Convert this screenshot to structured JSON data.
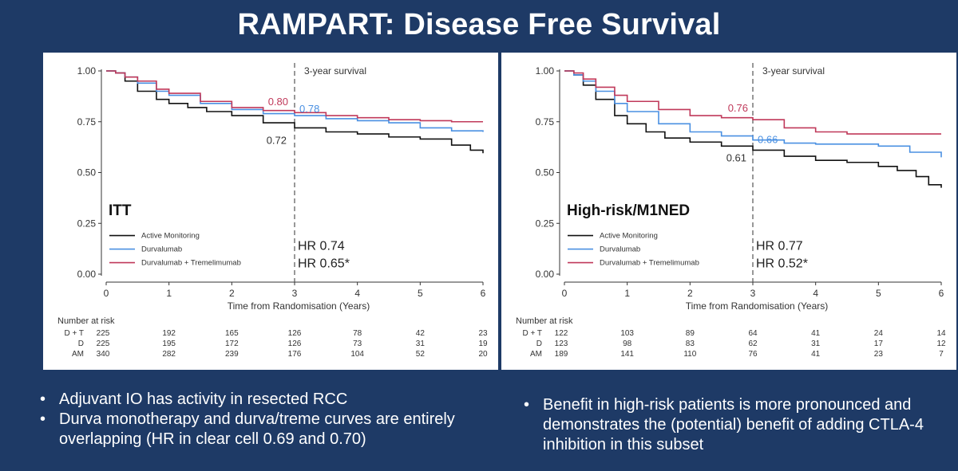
{
  "slide": {
    "title": "RAMPART: Disease Free Survival"
  },
  "bullets_left": [
    "Adjuvant IO has activity in resected RCC",
    "Durva monotherapy and durva/treme curves are entirely overlapping (HR in clear cell 0.69 and 0.70)"
  ],
  "bullets_right": [
    "Benefit in high-risk patients is more pronounced and demonstrates the (potential) benefit of adding CTLA-4 inhibition in this subset"
  ],
  "colors": {
    "active_monitoring": "#111111",
    "durvalumab": "#4a90e2",
    "durva_treme": "#c0395a"
  },
  "chart_data": [
    {
      "type": "line",
      "subtitle": "ITT",
      "xlabel": "Time from Randomisation (Years)",
      "ylabel": "",
      "xlim": [
        0,
        6
      ],
      "ylim": [
        0,
        1
      ],
      "x_ticks": [
        "0",
        "1",
        "2",
        "3",
        "4",
        "5",
        "6"
      ],
      "y_ticks": [
        "0.00",
        "0.25",
        "0.50",
        "0.75",
        "1.00"
      ],
      "grid": false,
      "legend_position": "bottom-left",
      "reference_line": {
        "x": 3,
        "label": "3-year survival"
      },
      "hr_labels": [
        "HR 0.74",
        "HR 0.65*"
      ],
      "series": [
        {
          "name": "Active Monitoring",
          "color_key": "active_monitoring",
          "label": "0.72",
          "label_at": [
            3,
            0.72
          ],
          "x": [
            0,
            0.15,
            0.3,
            0.5,
            0.8,
            1.0,
            1.3,
            1.6,
            2.0,
            2.5,
            3.0,
            3.5,
            4.0,
            4.5,
            5.0,
            5.5,
            5.8,
            6.0
          ],
          "y": [
            1.0,
            0.99,
            0.95,
            0.9,
            0.86,
            0.84,
            0.82,
            0.8,
            0.78,
            0.745,
            0.72,
            0.7,
            0.69,
            0.675,
            0.665,
            0.635,
            0.61,
            0.595
          ]
        },
        {
          "name": "Durvalumab",
          "color_key": "durvalumab",
          "label": "0.78",
          "label_at": [
            3,
            0.78
          ],
          "x": [
            0,
            0.15,
            0.3,
            0.5,
            0.8,
            1.0,
            1.5,
            2.0,
            2.5,
            3.0,
            3.5,
            4.0,
            4.5,
            5.0,
            5.5,
            6.0
          ],
          "y": [
            1.0,
            0.99,
            0.97,
            0.94,
            0.9,
            0.88,
            0.84,
            0.81,
            0.79,
            0.78,
            0.765,
            0.755,
            0.745,
            0.72,
            0.705,
            0.7
          ]
        },
        {
          "name": "Durvalumab + Tremelimumab",
          "color_key": "durva_treme",
          "label": "0.80",
          "label_at": [
            3,
            0.8
          ],
          "x": [
            0,
            0.15,
            0.3,
            0.5,
            0.8,
            1.0,
            1.5,
            2.0,
            2.5,
            3.0,
            3.5,
            4.0,
            4.5,
            5.0,
            5.5,
            6.0
          ],
          "y": [
            1.0,
            0.99,
            0.97,
            0.95,
            0.91,
            0.89,
            0.85,
            0.82,
            0.805,
            0.795,
            0.78,
            0.77,
            0.76,
            0.755,
            0.75,
            0.75
          ]
        }
      ],
      "risk_table": {
        "title": "Number at risk",
        "rows": [
          {
            "label": "D + T",
            "values": [
              "225",
              "192",
              "165",
              "126",
              "78",
              "42",
              "23"
            ]
          },
          {
            "label": "D",
            "values": [
              "225",
              "195",
              "172",
              "126",
              "73",
              "31",
              "19"
            ]
          },
          {
            "label": "AM",
            "values": [
              "340",
              "282",
              "239",
              "176",
              "104",
              "52",
              "20"
            ]
          }
        ]
      }
    },
    {
      "type": "line",
      "subtitle": "High-risk/M1NED",
      "xlabel": "Time from Randomisation (Years)",
      "ylabel": "",
      "xlim": [
        0,
        6
      ],
      "ylim": [
        0,
        1
      ],
      "x_ticks": [
        "0",
        "1",
        "2",
        "3",
        "4",
        "5",
        "6"
      ],
      "y_ticks": [
        "0.00",
        "0.25",
        "0.50",
        "0.75",
        "1.00"
      ],
      "grid": false,
      "legend_position": "bottom-left",
      "reference_line": {
        "x": 3,
        "label": "3-year survival"
      },
      "hr_labels": [
        "HR 0.77",
        "HR 0.52*"
      ],
      "series": [
        {
          "name": "Active Monitoring",
          "color_key": "active_monitoring",
          "label": "0.61",
          "label_at": [
            3,
            0.61
          ],
          "x": [
            0,
            0.15,
            0.3,
            0.5,
            0.8,
            1.0,
            1.3,
            1.6,
            2.0,
            2.5,
            3.0,
            3.5,
            4.0,
            4.5,
            5.0,
            5.3,
            5.6,
            5.8,
            6.0
          ],
          "y": [
            1.0,
            0.98,
            0.93,
            0.86,
            0.78,
            0.74,
            0.7,
            0.67,
            0.65,
            0.63,
            0.61,
            0.58,
            0.56,
            0.55,
            0.53,
            0.51,
            0.48,
            0.44,
            0.425
          ]
        },
        {
          "name": "Durvalumab",
          "color_key": "durvalumab",
          "label": "0.66",
          "label_at": [
            3,
            0.66
          ],
          "x": [
            0,
            0.15,
            0.3,
            0.5,
            0.8,
            1.0,
            1.5,
            2.0,
            2.5,
            3.0,
            3.5,
            4.0,
            4.5,
            5.0,
            5.5,
            6.0
          ],
          "y": [
            1.0,
            0.98,
            0.95,
            0.9,
            0.84,
            0.8,
            0.74,
            0.7,
            0.68,
            0.66,
            0.645,
            0.64,
            0.64,
            0.63,
            0.6,
            0.575
          ]
        },
        {
          "name": "Durvalumab + Tremelimumab",
          "color_key": "durva_treme",
          "label": "0.76",
          "label_at": [
            3,
            0.76
          ],
          "x": [
            0,
            0.15,
            0.3,
            0.5,
            0.8,
            1.0,
            1.5,
            2.0,
            2.5,
            3.0,
            3.5,
            4.0,
            4.5,
            5.0,
            5.5,
            6.0
          ],
          "y": [
            1.0,
            0.99,
            0.96,
            0.92,
            0.88,
            0.85,
            0.81,
            0.78,
            0.77,
            0.76,
            0.72,
            0.7,
            0.69,
            0.69,
            0.69,
            0.69
          ]
        }
      ],
      "risk_table": {
        "title": "Number at risk",
        "rows": [
          {
            "label": "D + T",
            "values": [
              "122",
              "103",
              "89",
              "64",
              "41",
              "24",
              "14"
            ]
          },
          {
            "label": "D",
            "values": [
              "123",
              "98",
              "83",
              "62",
              "31",
              "17",
              "12"
            ]
          },
          {
            "label": "AM",
            "values": [
              "189",
              "141",
              "110",
              "76",
              "41",
              "23",
              "7"
            ]
          }
        ]
      }
    }
  ]
}
